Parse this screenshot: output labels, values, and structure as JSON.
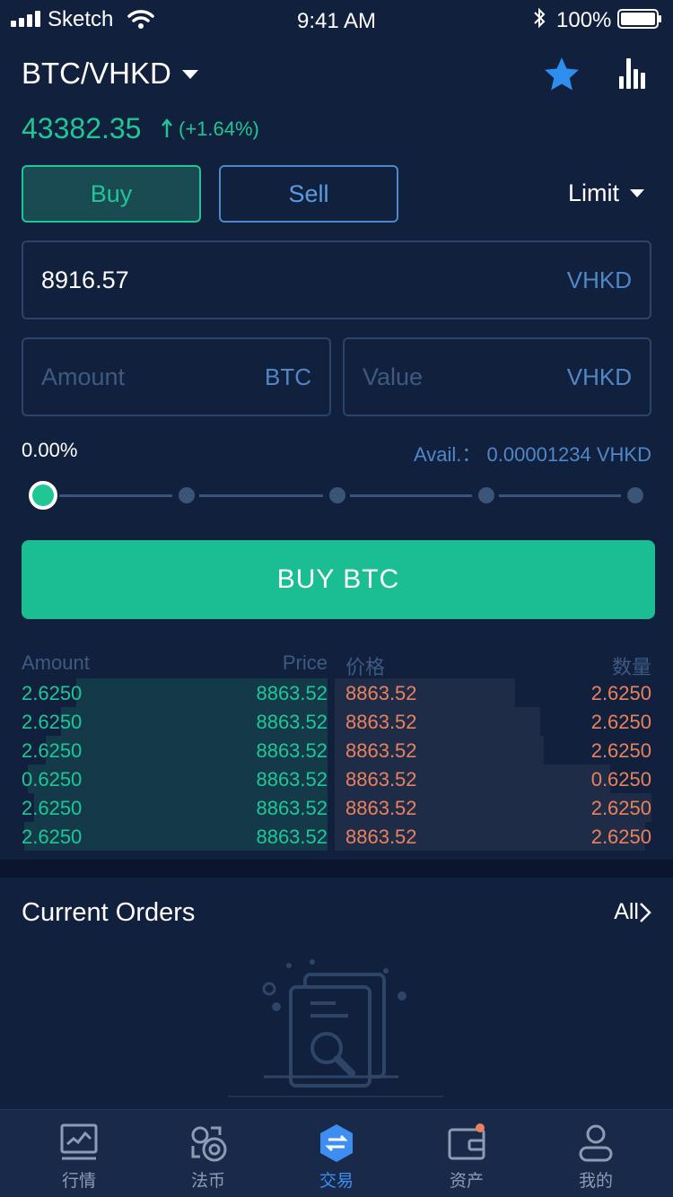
{
  "status_bar": {
    "carrier": "Sketch",
    "time": "9:41 AM",
    "battery": "100%"
  },
  "header": {
    "pair": "BTC/VHKD"
  },
  "ticker": {
    "last_price": "43382.35",
    "change": "(+1.64%)"
  },
  "trade_tabs": {
    "buy": "Buy",
    "sell": "Sell"
  },
  "order_type": "Limit",
  "price_input": {
    "value": "8916.57",
    "unit": "VHKD"
  },
  "amount_input": {
    "placeholder": "Amount",
    "unit": "BTC"
  },
  "value_input": {
    "placeholder": "Value",
    "unit": "VHKD"
  },
  "percent": "0.00%",
  "available": "Avail.： 0.00001234 VHKD",
  "slider": {
    "value_fraction": 0.0,
    "stops": 5
  },
  "buy_button": "BUY BTC",
  "order_book": {
    "headers": {
      "bid_amount": "Amount",
      "bid_price": "Price",
      "ask_price": "价格",
      "ask_amount": "数量"
    },
    "rows": [
      {
        "bid_amount": "2.6250",
        "bid_price": "8863.52",
        "ask_price": "8863.52",
        "ask_amount": "2.6250"
      },
      {
        "bid_amount": "2.6250",
        "bid_price": "8863.52",
        "ask_price": "8863.52",
        "ask_amount": "2.6250"
      },
      {
        "bid_amount": "2.6250",
        "bid_price": "8863.52",
        "ask_price": "8863.52",
        "ask_amount": "2.6250"
      },
      {
        "bid_amount": "0.6250",
        "bid_price": "8863.52",
        "ask_price": "8863.52",
        "ask_amount": "0.6250"
      },
      {
        "bid_amount": "2.6250",
        "bid_price": "8863.52",
        "ask_price": "8863.52",
        "ask_amount": "2.6250"
      },
      {
        "bid_amount": "2.6250",
        "bid_price": "8863.52",
        "ask_price": "8863.52",
        "ask_amount": "2.6250"
      }
    ]
  },
  "current_orders": {
    "title": "Current Orders",
    "all_link": "All"
  },
  "tabbar": {
    "items": [
      {
        "label": "行情",
        "icon": "market-chart-icon"
      },
      {
        "label": "法币",
        "icon": "fiat-exchange-icon"
      },
      {
        "label": "交易",
        "icon": "trade-icon"
      },
      {
        "label": "资产",
        "icon": "wallet-icon"
      },
      {
        "label": "我的",
        "icon": "profile-icon"
      }
    ]
  },
  "colors": {
    "background": "#11203d",
    "buy_green": "#1fc696",
    "sell_red": "#e9815d",
    "accent_blue": "#3d8ef0"
  }
}
